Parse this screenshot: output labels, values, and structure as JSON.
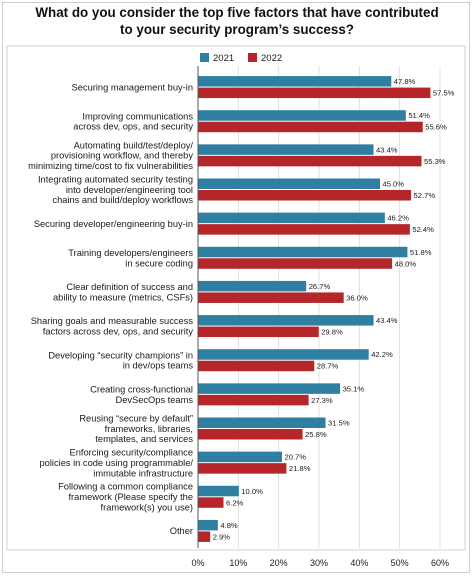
{
  "chart_data": {
    "type": "bar",
    "orientation": "horizontal",
    "title": "What do you consider the top five factors that have contributed to your security program's success?",
    "title_lines": [
      "What do you consider the top five factors that have contributed",
      "to your security program’s success?"
    ],
    "categories": [
      [
        "Securing management buy-in"
      ],
      [
        "Improving communications",
        "across dev, ops, and security"
      ],
      [
        "Automating build/test/deploy/",
        "provisioning workflow, and thereby",
        "minimizing time/cost to fix vulnerabilities"
      ],
      [
        "Integrating automated security testing",
        "into developer/engineering tool",
        "chains and build/deploy workflows"
      ],
      [
        "Securing developer/engineering buy-in"
      ],
      [
        "Training developers/engineers",
        "in secure coding"
      ],
      [
        "Clear definition of success and",
        "ability to measure (metrics, CSFs)"
      ],
      [
        "Sharing goals and measurable success",
        "factors across dev, ops, and security"
      ],
      [
        "Developing “security champions” in",
        "in dev/ops teams"
      ],
      [
        "Creating cross-functional",
        "DevSecOps teams"
      ],
      [
        "Reusing “secure by default”",
        "frameworks, libraries,",
        "templates, and services"
      ],
      [
        "Enforcing security/compliance",
        "policies in code using programmable/",
        "immutable infrastructure"
      ],
      [
        "Following a common compliance",
        "framework (Please specify the",
        "framework(s) you use)"
      ],
      [
        "Other"
      ]
    ],
    "series": [
      {
        "name": "2021",
        "color": "#2f7fa2",
        "values": [
          47.8,
          51.4,
          43.4,
          45.0,
          46.2,
          51.8,
          26.7,
          43.4,
          42.2,
          35.1,
          31.5,
          20.7,
          10.0,
          4.8
        ],
        "labels": [
          "47.8%",
          "51.4%",
          "43.4%",
          "45.0%",
          "46.2%",
          "51.8%",
          "26.7%",
          "43.4%",
          "42.2%",
          "35.1%",
          "31.5%",
          "20.7%",
          "10.0%",
          "4.8%"
        ]
      },
      {
        "name": "2022",
        "color": "#b5262a",
        "values": [
          57.5,
          55.6,
          55.3,
          52.7,
          52.4,
          48.0,
          36.0,
          29.8,
          28.7,
          27.3,
          25.8,
          21.8,
          6.2,
          2.9
        ],
        "labels": [
          "57.5%",
          "55.6%",
          "55.3%",
          "52.7%",
          "52.4%",
          "48.0%",
          "36.0%",
          "29.8%",
          "28.7%",
          "27.3%",
          "25.8%",
          "21.8%",
          "6.2%",
          "2.9%"
        ]
      }
    ],
    "xlim": [
      0,
      60
    ],
    "xticks": [
      "0%",
      "10%",
      "20%",
      "30%",
      "40%",
      "50%",
      "60%"
    ],
    "grid": true,
    "legend_position": "top"
  }
}
